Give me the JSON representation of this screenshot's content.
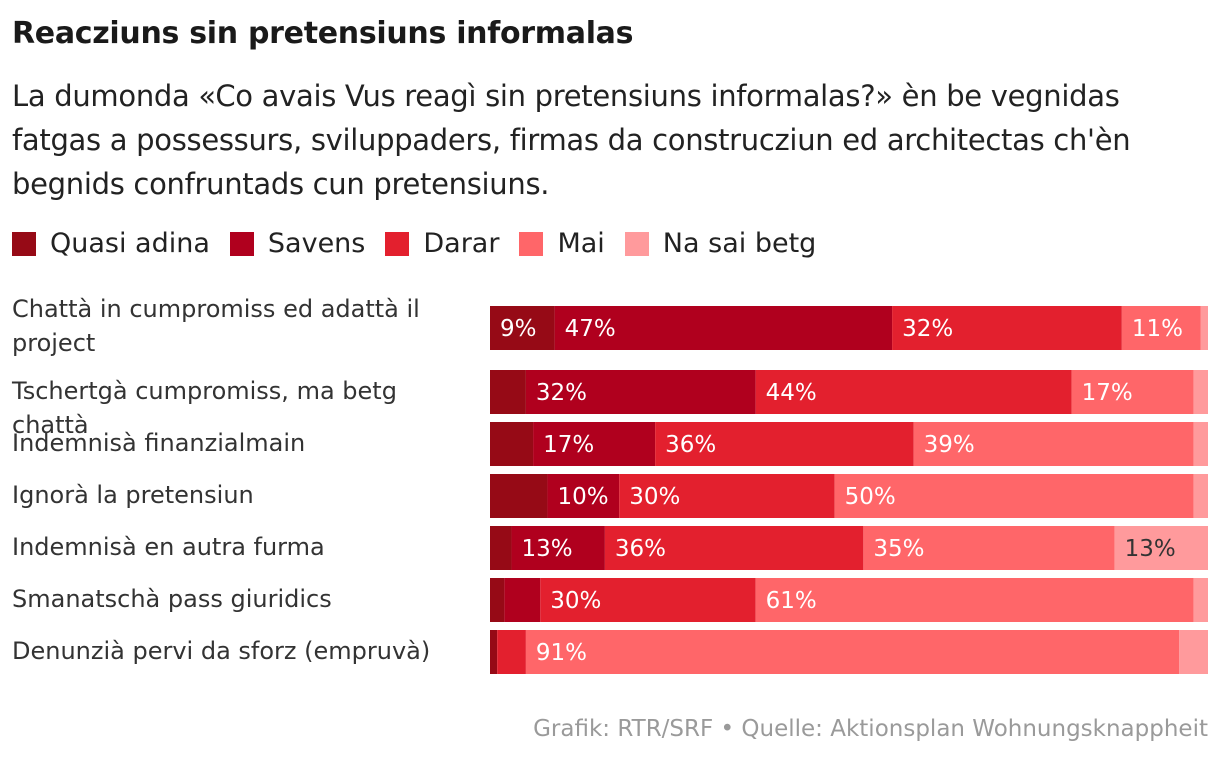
{
  "chart_data": {
    "type": "bar",
    "orientation": "horizontal",
    "stacked": true,
    "normalized": true,
    "title": "Reacziuns sin pretensiuns informalas",
    "subtitle": "La dumonda «Co avais Vus reagì sin pretensiuns informalas?» èn be vegnidas fatgas a possessurs, sviluppaders, firmas da construcziun ed architectas ch'èn begnids confruntads cun pretensiuns.",
    "legend_position": "top-left",
    "categories": [
      "Chattà in cumpromiss ed adattà il project",
      "Tschertgà cumpromiss, ma betg chattà",
      "Indemnisà finanzialmain",
      "Ignorà la pretensiun",
      "Indemnisà en autra furma",
      "Smanatschà pass giuridics",
      "Denunzià pervi da sforz (empruvà)"
    ],
    "series": [
      {
        "name": "Quasi adina",
        "color": "#960a16",
        "values": [
          9,
          5,
          6,
          8,
          3,
          2,
          1
        ]
      },
      {
        "name": "Savens",
        "color": "#b0001e",
        "values": [
          47,
          32,
          17,
          10,
          13,
          5,
          0
        ]
      },
      {
        "name": "Darar",
        "color": "#e3202e",
        "values": [
          32,
          44,
          36,
          30,
          36,
          30,
          4
        ]
      },
      {
        "name": "Mai",
        "color": "#ff6669",
        "values": [
          11,
          17,
          39,
          50,
          35,
          61,
          91
        ]
      },
      {
        "name": "Na sai betg",
        "color": "#ff9a9c",
        "values": [
          1,
          2,
          2,
          2,
          13,
          2,
          4
        ]
      }
    ],
    "data_labels": [
      [
        "9%",
        "47%",
        "32%",
        "11%",
        ""
      ],
      [
        "",
        "32%",
        "44%",
        "17%",
        ""
      ],
      [
        "",
        "17%",
        "36%",
        "39%",
        ""
      ],
      [
        "",
        "10%",
        "30%",
        "50%",
        ""
      ],
      [
        "",
        "13%",
        "36%",
        "35%",
        "13%"
      ],
      [
        "",
        "",
        "30%",
        "61%",
        ""
      ],
      [
        "",
        "",
        "",
        "91%",
        ""
      ]
    ],
    "label_colors": [
      "#ffffff",
      "#ffffff",
      "#ffffff",
      "#ffffff",
      "#333333"
    ]
  },
  "footer": "Grafik: RTR/SRF • Quelle: Aktionsplan Wohnungsknappheit"
}
